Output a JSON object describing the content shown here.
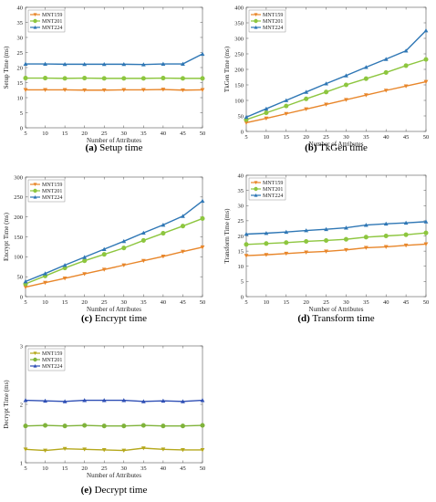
{
  "colors": {
    "MNT159": "#e8862a",
    "MNT201": "#8dc63f",
    "MNT224": "#2f77b5",
    "MNT159_e": "#b5a81c",
    "MNT201_e": "#7fb33a",
    "MNT224_e": "#2f4fb5"
  },
  "chart_data": [
    {
      "type": "line",
      "caption": {
        "label": "(a)",
        "text": "Setup time"
      },
      "xlabel": "Number of Attributes",
      "ylabel": "Setup Time (ms)",
      "ylim": [
        0,
        40
      ],
      "yticks": [
        0,
        5,
        10,
        15,
        20,
        25,
        30,
        35,
        40
      ],
      "xlim": [
        5,
        50
      ],
      "x": [
        5,
        10,
        15,
        20,
        25,
        30,
        35,
        40,
        45,
        50
      ],
      "legend": "top-left",
      "series": [
        {
          "name": "MNT159",
          "marker": "triangle-down",
          "colorKey": "MNT159",
          "values": [
            12.6,
            12.6,
            12.6,
            12.5,
            12.5,
            12.6,
            12.6,
            12.7,
            12.5,
            12.6
          ]
        },
        {
          "name": "MNT201",
          "marker": "circle",
          "colorKey": "MNT201",
          "values": [
            16.5,
            16.5,
            16.4,
            16.5,
            16.4,
            16.4,
            16.4,
            16.5,
            16.4,
            16.4
          ]
        },
        {
          "name": "MNT224",
          "marker": "triangle-up",
          "colorKey": "MNT224",
          "values": [
            21.2,
            21.2,
            21.1,
            21.1,
            21.1,
            21.1,
            21.0,
            21.2,
            21.2,
            24.5
          ]
        }
      ]
    },
    {
      "type": "line",
      "caption": {
        "label": "(b)",
        "text": "TkGen time"
      },
      "xlabel": "Number of Attributes",
      "ylabel": "TkGen Time (ms)",
      "ylim": [
        0,
        400
      ],
      "yticks": [
        0,
        50,
        100,
        150,
        200,
        250,
        300,
        350,
        400
      ],
      "xlim": [
        5,
        50
      ],
      "x": [
        5,
        10,
        15,
        20,
        25,
        30,
        35,
        40,
        45,
        50
      ],
      "legend": "top-left",
      "series": [
        {
          "name": "MNT159",
          "marker": "triangle-down",
          "colorKey": "MNT159",
          "values": [
            28,
            42,
            57,
            72,
            87,
            102,
            117,
            132,
            146,
            160
          ]
        },
        {
          "name": "MNT201",
          "marker": "circle",
          "colorKey": "MNT201",
          "values": [
            38,
            60,
            82,
            105,
            127,
            150,
            170,
            190,
            212,
            232
          ]
        },
        {
          "name": "MNT224",
          "marker": "triangle-up",
          "colorKey": "MNT224",
          "values": [
            46,
            73,
            100,
            127,
            154,
            180,
            207,
            233,
            260,
            325
          ]
        }
      ]
    },
    {
      "type": "line",
      "caption": {
        "label": "(c)",
        "text": "Encrypt time"
      },
      "xlabel": "Number of Attributes",
      "ylabel": "Encrypt Time (ms)",
      "ylim": [
        0,
        300
      ],
      "yticks": [
        0,
        50,
        100,
        150,
        200,
        250,
        300
      ],
      "xlim": [
        5,
        50
      ],
      "x": [
        5,
        10,
        15,
        20,
        25,
        30,
        35,
        40,
        45,
        50
      ],
      "legend": "top-left",
      "series": [
        {
          "name": "MNT159",
          "marker": "triangle-down",
          "colorKey": "MNT159",
          "values": [
            24,
            35,
            46,
            57,
            68,
            79,
            90,
            101,
            113,
            124
          ]
        },
        {
          "name": "MNT201",
          "marker": "circle",
          "colorKey": "MNT201",
          "values": [
            32,
            52,
            72,
            90,
            106,
            122,
            141,
            159,
            177,
            196
          ]
        },
        {
          "name": "MNT224",
          "marker": "triangle-up",
          "colorKey": "MNT224",
          "values": [
            38,
            58,
            79,
            99,
            119,
            139,
            160,
            180,
            202,
            240
          ]
        }
      ]
    },
    {
      "type": "line",
      "caption": {
        "label": "(d)",
        "text": "Transform time"
      },
      "xlabel": "Number of Attributes",
      "ylabel": "Transform Time (ms)",
      "ylim": [
        0,
        40
      ],
      "yticks": [
        0,
        5,
        10,
        15,
        20,
        25,
        30,
        35,
        40
      ],
      "xlim": [
        5,
        50
      ],
      "x": [
        5,
        10,
        15,
        20,
        25,
        30,
        35,
        40,
        45,
        50
      ],
      "legend": "top-left",
      "series": [
        {
          "name": "MNT159",
          "marker": "triangle-down",
          "colorKey": "MNT159",
          "values": [
            13.5,
            13.8,
            14.2,
            14.6,
            14.9,
            15.4,
            16.1,
            16.4,
            16.9,
            17.3
          ]
        },
        {
          "name": "MNT201",
          "marker": "circle",
          "colorKey": "MNT201",
          "values": [
            17.2,
            17.5,
            17.8,
            18.2,
            18.5,
            18.9,
            19.6,
            20.0,
            20.4,
            21.0
          ]
        },
        {
          "name": "MNT224",
          "marker": "triangle-up",
          "colorKey": "MNT224",
          "values": [
            20.6,
            20.9,
            21.3,
            21.8,
            22.2,
            22.7,
            23.6,
            24.0,
            24.3,
            24.7
          ]
        }
      ]
    },
    {
      "type": "line",
      "caption": {
        "label": "(e)",
        "text": "Decrypt time"
      },
      "xlabel": "Number of Attributes",
      "ylabel": "Decrypt Time (ms)",
      "ylim": [
        1,
        3
      ],
      "yticks": [
        1,
        2,
        3
      ],
      "xlim": [
        5,
        50
      ],
      "x": [
        5,
        10,
        15,
        20,
        25,
        30,
        35,
        40,
        45,
        50
      ],
      "legend": "top-left",
      "series": [
        {
          "name": "MNT159",
          "marker": "triangle-down",
          "colorKey": "MNT159_e",
          "values": [
            1.23,
            1.21,
            1.24,
            1.23,
            1.22,
            1.21,
            1.25,
            1.23,
            1.22,
            1.22
          ]
        },
        {
          "name": "MNT201",
          "marker": "circle",
          "colorKey": "MNT201_e",
          "values": [
            1.63,
            1.64,
            1.63,
            1.64,
            1.63,
            1.63,
            1.64,
            1.63,
            1.63,
            1.64
          ]
        },
        {
          "name": "MNT224",
          "marker": "triangle-up",
          "colorKey": "MNT224_e",
          "values": [
            2.07,
            2.06,
            2.05,
            2.07,
            2.07,
            2.07,
            2.05,
            2.06,
            2.05,
            2.07
          ]
        }
      ]
    }
  ]
}
